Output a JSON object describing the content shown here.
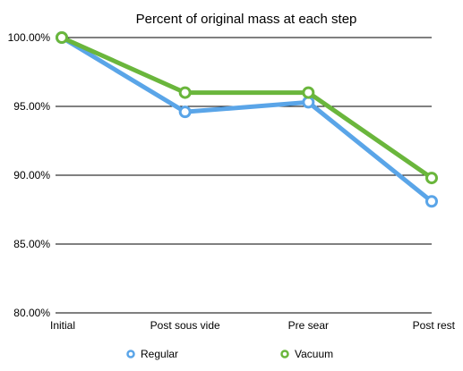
{
  "chart_data": {
    "type": "line",
    "title": "Percent of original mass at each step",
    "xlabel": "",
    "ylabel": "",
    "categories": [
      "Initial",
      "Post sous vide",
      "Pre sear",
      "Post rest"
    ],
    "y_ticks": [
      "80.00%",
      "85.00%",
      "90.00%",
      "95.00%",
      "100.00%"
    ],
    "ylim": [
      80,
      100
    ],
    "grid": true,
    "legend_position": "bottom",
    "series": [
      {
        "name": "Regular",
        "color": "#5aa5e8",
        "values": [
          100.0,
          94.6,
          95.3,
          88.1
        ]
      },
      {
        "name": "Vacuum",
        "color": "#6ab63c",
        "values": [
          100.0,
          96.0,
          96.0,
          89.8
        ]
      }
    ]
  }
}
